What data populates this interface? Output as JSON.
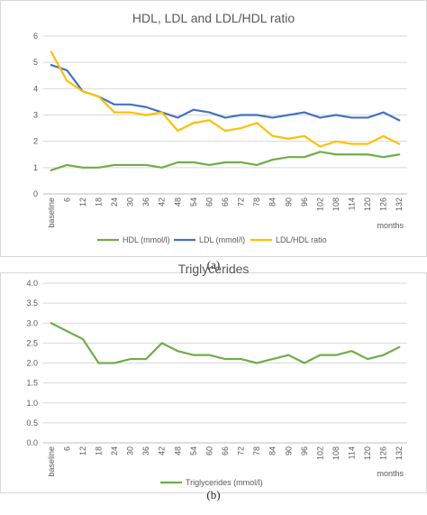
{
  "chart_data": [
    {
      "type": "line",
      "title": "HDL, LDL and LDL/HDL ratio",
      "panel_label": "(a)",
      "x_unit_label": "months",
      "categories": [
        "baseline",
        "6",
        "12",
        "18",
        "24",
        "30",
        "36",
        "42",
        "48",
        "54",
        "60",
        "66",
        "72",
        "78",
        "84",
        "90",
        "96",
        "102",
        "108",
        "114",
        "120",
        "126",
        "132"
      ],
      "ylim": [
        0,
        6
      ],
      "yticks": [
        "0",
        "1",
        "2",
        "3",
        "4",
        "5",
        "6"
      ],
      "grid": true,
      "legend_position": "bottom",
      "series": [
        {
          "name": "HDL (mmol/l)",
          "color": "#70ad47",
          "values": [
            0.9,
            1.1,
            1.0,
            1.0,
            1.1,
            1.1,
            1.1,
            1.0,
            1.2,
            1.2,
            1.1,
            1.2,
            1.2,
            1.1,
            1.3,
            1.4,
            1.4,
            1.6,
            1.5,
            1.5,
            1.5,
            1.4,
            1.5
          ]
        },
        {
          "name": "LDL (mmol/l)",
          "color": "#4472c4",
          "values": [
            4.9,
            4.7,
            3.9,
            3.7,
            3.4,
            3.4,
            3.3,
            3.1,
            2.9,
            3.2,
            3.1,
            2.9,
            3.0,
            3.0,
            2.9,
            3.0,
            3.1,
            2.9,
            3.0,
            2.9,
            2.9,
            3.1,
            2.8
          ]
        },
        {
          "name": "LDL/HDL ratio",
          "color": "#ffc000",
          "values": [
            5.4,
            4.3,
            3.9,
            3.7,
            3.1,
            3.1,
            3.0,
            3.1,
            2.4,
            2.7,
            2.8,
            2.4,
            2.5,
            2.7,
            2.2,
            2.1,
            2.2,
            1.8,
            2.0,
            1.9,
            1.9,
            2.2,
            1.9
          ]
        }
      ]
    },
    {
      "type": "line",
      "title": "Triglycerides",
      "panel_label": "(b)",
      "x_unit_label": "months",
      "categories": [
        "baseline",
        "6",
        "12",
        "18",
        "24",
        "30",
        "36",
        "42",
        "48",
        "54",
        "60",
        "66",
        "72",
        "78",
        "84",
        "90",
        "96",
        "102",
        "108",
        "114",
        "120",
        "126",
        "132"
      ],
      "ylim": [
        0,
        4
      ],
      "yticks": [
        "0.0",
        "0.5",
        "1.0",
        "1.5",
        "2.0",
        "2.5",
        "3.0",
        "3.5",
        "4.0"
      ],
      "grid": true,
      "legend_position": "bottom",
      "series": [
        {
          "name": "Triglycerides (mmol/l)",
          "color": "#70ad47",
          "values": [
            3.0,
            2.8,
            2.6,
            2.0,
            2.0,
            2.1,
            2.1,
            2.5,
            2.3,
            2.2,
            2.2,
            2.1,
            2.1,
            2.0,
            2.1,
            2.2,
            2.0,
            2.2,
            2.2,
            2.3,
            2.1,
            2.2,
            2.4
          ]
        }
      ]
    }
  ]
}
